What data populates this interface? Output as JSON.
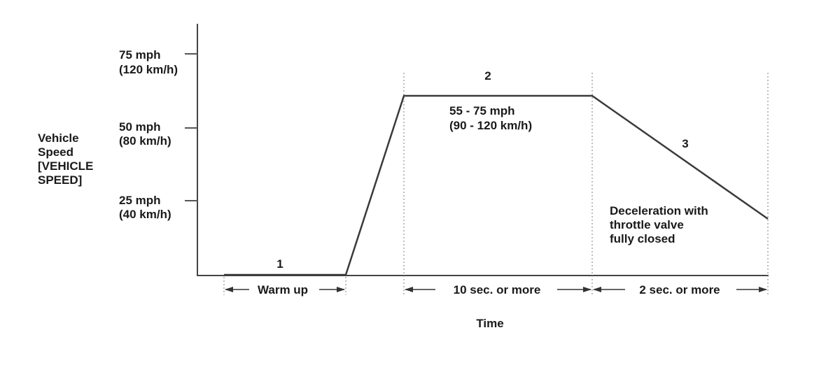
{
  "y_axis": {
    "title_lines": [
      "Vehicle",
      "Speed",
      "[VEHICLE",
      "SPEED]"
    ],
    "ticks": [
      {
        "value_mph": 75,
        "line1": "75 mph",
        "line2": "(120 km/h)"
      },
      {
        "value_mph": 50,
        "line1": "50 mph",
        "line2": "(80 km/h)"
      },
      {
        "value_mph": 25,
        "line1": "25 mph",
        "line2": "(40 km/h)"
      }
    ]
  },
  "x_axis": {
    "title": "Time"
  },
  "phases": [
    {
      "number": "1",
      "duration_label": "Warm up"
    },
    {
      "number": "2",
      "duration_label": "10 sec. or more",
      "speed_lines": [
        "55 - 75 mph",
        "(90 - 120 km/h)"
      ]
    },
    {
      "number": "3",
      "duration_label": "2 sec. or more",
      "note_lines": [
        "Deceleration with",
        "throttle valve",
        "fully closed"
      ]
    }
  ]
}
